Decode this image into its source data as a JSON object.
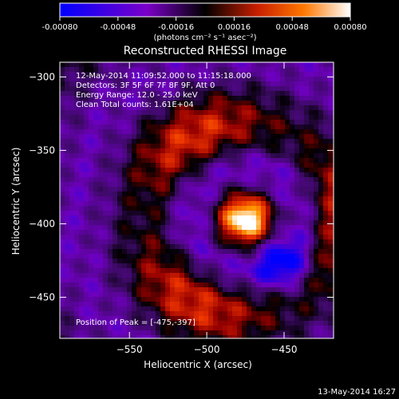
{
  "chart_data": {
    "type": "heatmap",
    "title": "Reconstructed RHESSI Image",
    "xlabel": "Heliocentric X (arcsec)",
    "ylabel": "Heliocentric Y (arcsec)",
    "xlim": [
      -595,
      -418
    ],
    "ylim": [
      -478,
      -290
    ],
    "x_ticks": [
      -550,
      -500,
      -450
    ],
    "y_ticks": [
      -300,
      -350,
      -400,
      -450
    ],
    "colorbar": {
      "range": [
        -0.0008,
        0.0008
      ],
      "ticks": [
        "-0.00080",
        "-0.00048",
        "-0.00016",
        "0.00016",
        "0.00048",
        "0.00080"
      ],
      "label": "(photons cm⁻² s⁻¹ asec⁻²)"
    },
    "annotations": [
      "12-May-2014 11:09:52.000 to 11:15:18.000",
      "Detectors: 3F 5F 6F 7F 8F 9F, Att 0",
      "Energy Range: 12.0 - 25.0 keV",
      "Clean     Total counts: 1.61E+04"
    ],
    "peak_label": "Position of Peak = [-475,-397]",
    "peak": {
      "x": -475,
      "y": -397,
      "value": 0.0008
    },
    "timestamp": "13-May-2014 16:27"
  }
}
